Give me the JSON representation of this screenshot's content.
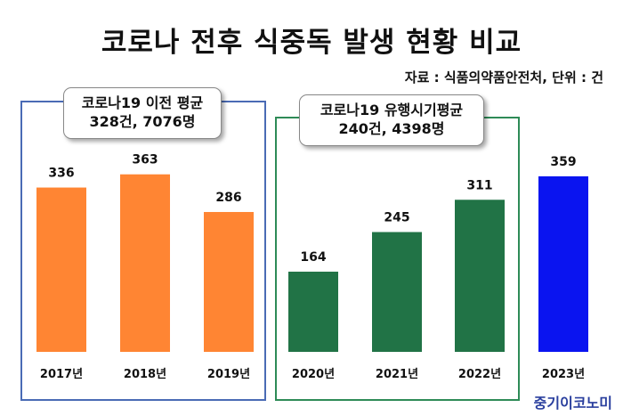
{
  "title": "코로나 전후 식중독 발생 현황 비교",
  "source": "자료 : 식품의약품안전처, 단위 : 건",
  "watermark": "중기이코노미",
  "groups": {
    "pre": {
      "line1": "코로나19 이전 평균",
      "line2": "328건, 7076명",
      "color": "#4a6bb5"
    },
    "covid": {
      "line1": "코로나19 유행시기평균",
      "line2": "240건, 4398명",
      "color": "#2e8b57"
    }
  },
  "chart_data": {
    "type": "bar",
    "title": "코로나 전후 식중독 발생 현황 비교",
    "categories": [
      "2017년",
      "2018년",
      "2019년",
      "2020년",
      "2021년",
      "2022년",
      "2023년"
    ],
    "values": [
      336,
      363,
      286,
      164,
      245,
      311,
      359
    ],
    "colors": [
      "#ff8533",
      "#ff8533",
      "#ff8533",
      "#217346",
      "#217346",
      "#217346",
      "#0a14f0"
    ],
    "ylim": [
      0,
      400
    ],
    "grid": false,
    "legend": "none"
  }
}
